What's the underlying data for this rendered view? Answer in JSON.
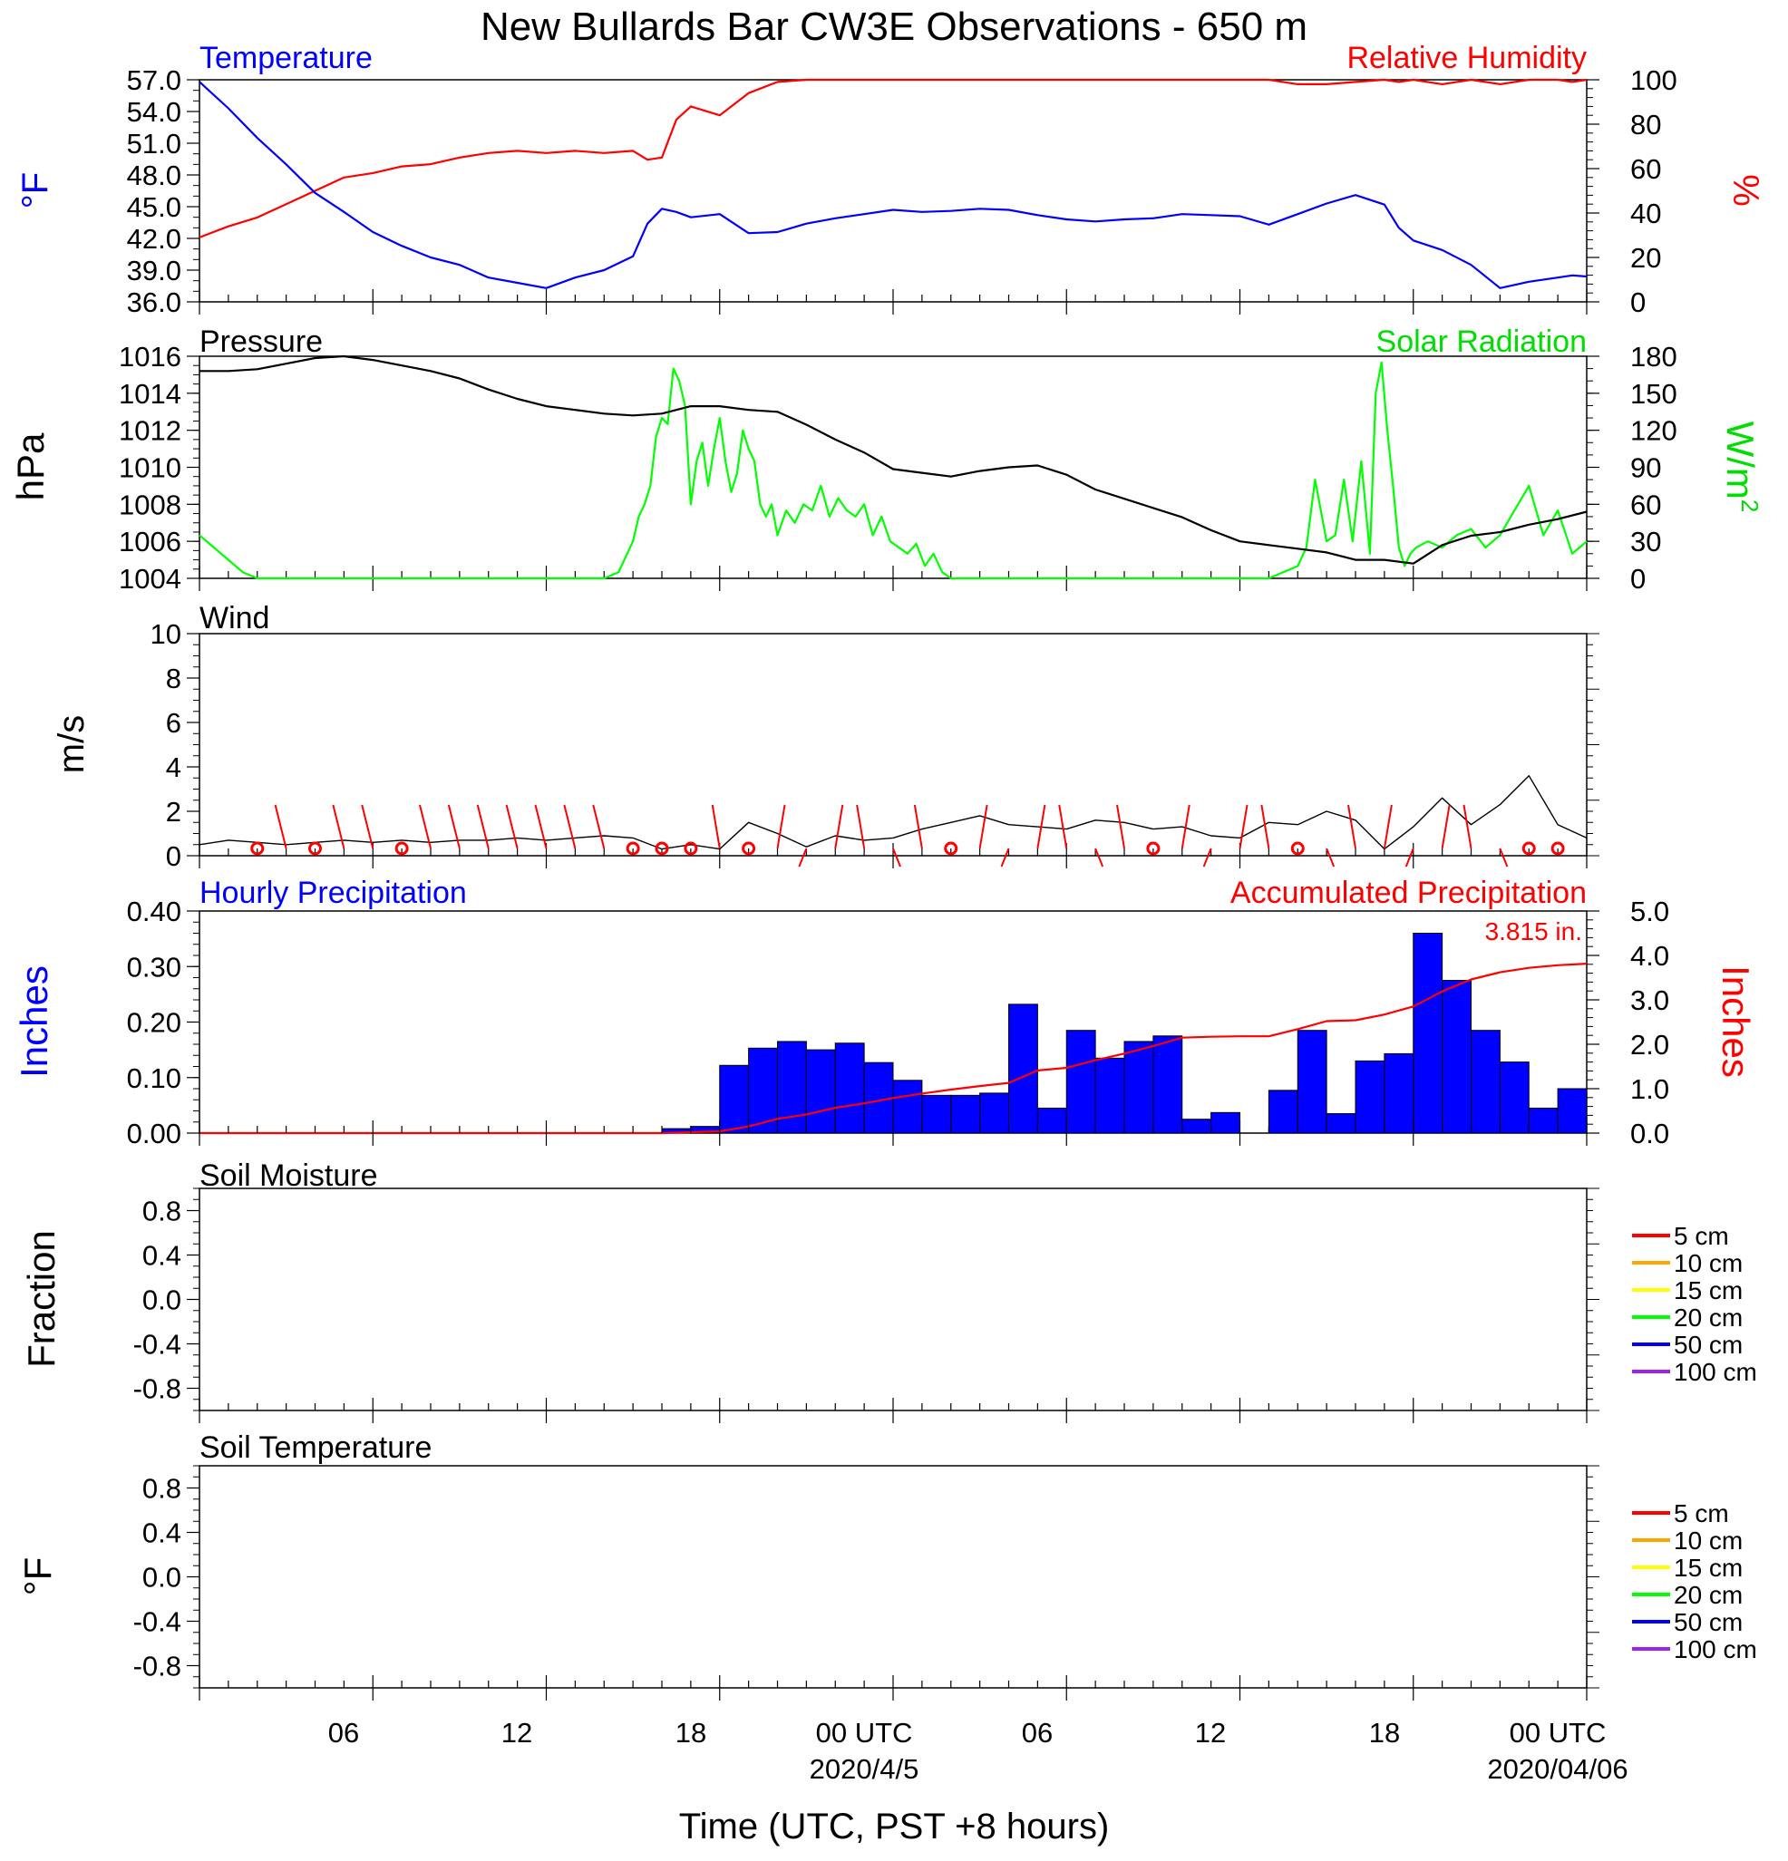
{
  "title": "New Bullards Bar CW3E Observations - 650 m",
  "x_axis": {
    "tick_labels": [
      "06",
      "12",
      "18",
      "00 UTC",
      "06",
      "12",
      "18",
      "00 UTC"
    ],
    "date_labels": [
      "2020/4/5",
      "2020/04/06"
    ],
    "xlabel": "Time (UTC, PST +8 hours)"
  },
  "colors": {
    "blue": "#0000ff",
    "red": "#ff0000",
    "green": "#00ff00",
    "black": "#000000"
  },
  "chart_data": [
    {
      "type": "line",
      "panel": "temperature_humidity",
      "left_title": "Temperature",
      "right_title": "Relative Humidity",
      "ylabel_left": "°F",
      "ylabel_right": "%",
      "ylim_left": [
        36,
        57
      ],
      "ylim_right": [
        0,
        100
      ],
      "left_ticks": [
        "57.0",
        "54.0",
        "51.0",
        "48.0",
        "45.0",
        "42.0",
        "39.0",
        "36.0"
      ],
      "right_ticks": [
        "100",
        "80",
        "60",
        "40",
        "20",
        "0"
      ],
      "x_hours": [
        0,
        1,
        2,
        3,
        4,
        5,
        6,
        7,
        8,
        9,
        10,
        11,
        12,
        13,
        14,
        15,
        15.5,
        16,
        16.5,
        17,
        18,
        19,
        20,
        21,
        22,
        23,
        24,
        25,
        26,
        27,
        28,
        29,
        30,
        31,
        32,
        33,
        34,
        35,
        36,
        37,
        38,
        39,
        40,
        41,
        41.5,
        42,
        43,
        44,
        45,
        46,
        47,
        47.5,
        48
      ],
      "series": [
        {
          "name": "Temperature",
          "axis": "left",
          "values": [
            56.8,
            54.3,
            51.5,
            49.0,
            46.3,
            44.5,
            42.6,
            41.3,
            40.2,
            39.5,
            38.3,
            37.8,
            37.3,
            38.3,
            39.0,
            40.3,
            43.4,
            44.8,
            44.5,
            44.0,
            44.3,
            42.5,
            42.6,
            43.4,
            43.9,
            44.3,
            44.7,
            44.5,
            44.6,
            44.8,
            44.7,
            44.2,
            43.8,
            43.6,
            43.8,
            43.9,
            44.3,
            44.2,
            44.1,
            43.3,
            44.3,
            45.3,
            46.1,
            45.2,
            43.0,
            41.8,
            40.9,
            39.5,
            37.3,
            37.9,
            38.3,
            38.5,
            38.4
          ]
        },
        {
          "name": "Relative Humidity",
          "axis": "right",
          "values": [
            29,
            34,
            38,
            44,
            50,
            56,
            58,
            61,
            62,
            65,
            67,
            68,
            67,
            68,
            67,
            68,
            64,
            65,
            82,
            88,
            84,
            94,
            99,
            100,
            100,
            100,
            100,
            100,
            100,
            100,
            100,
            100,
            100,
            100,
            100,
            100,
            100,
            100,
            100,
            100,
            98,
            98,
            99,
            100,
            99,
            100,
            98,
            100,
            98,
            100,
            100,
            99,
            100
          ]
        }
      ]
    },
    {
      "type": "line",
      "panel": "pressure_solar",
      "left_title": "Pressure",
      "right_title": "Solar Radiation",
      "ylabel_left": "hPa",
      "ylabel_right": "W/m",
      "ylabel_right_sup": "2",
      "ylim_left": [
        1004,
        1016
      ],
      "ylim_right": [
        0,
        180
      ],
      "left_ticks": [
        "1016",
        "1014",
        "1012",
        "1010",
        "1008",
        "1006",
        "1004"
      ],
      "right_ticks": [
        "180",
        "150",
        "120",
        "90",
        "60",
        "30",
        "0"
      ],
      "series": [
        {
          "name": "Pressure",
          "axis": "left",
          "x_hours": [
            0,
            1,
            2,
            3,
            4,
            5,
            6,
            7,
            8,
            9,
            10,
            11,
            12,
            13,
            14,
            15,
            16,
            17,
            18,
            19,
            20,
            21,
            22,
            23,
            24,
            25,
            26,
            27,
            28,
            29,
            30,
            31,
            32,
            33,
            34,
            35,
            36,
            37,
            38,
            39,
            40,
            41,
            42,
            43,
            44,
            45,
            46,
            47,
            48
          ],
          "values": [
            1015.2,
            1015.2,
            1015.3,
            1015.6,
            1015.9,
            1016.0,
            1015.8,
            1015.5,
            1015.2,
            1014.8,
            1014.2,
            1013.7,
            1013.3,
            1013.1,
            1012.9,
            1012.8,
            1012.9,
            1013.3,
            1013.3,
            1013.1,
            1013.0,
            1012.3,
            1011.5,
            1010.8,
            1009.9,
            1009.7,
            1009.5,
            1009.8,
            1010.0,
            1010.1,
            1009.6,
            1008.8,
            1008.3,
            1007.8,
            1007.3,
            1006.6,
            1006.0,
            1005.8,
            1005.6,
            1005.4,
            1005.0,
            1005.0,
            1004.8,
            1005.8,
            1006.3,
            1006.5,
            1006.9,
            1007.2,
            1007.6
          ]
        },
        {
          "name": "Solar Radiation",
          "axis": "right",
          "x_hours": [
            0,
            0.5,
            1,
            1.5,
            2,
            14,
            14.5,
            15,
            15.2,
            15.4,
            15.6,
            15.8,
            16,
            16.2,
            16.4,
            16.6,
            16.8,
            17,
            17.2,
            17.4,
            17.6,
            17.8,
            18,
            18.2,
            18.4,
            18.6,
            18.8,
            19,
            19.2,
            19.4,
            19.6,
            19.8,
            20,
            20.3,
            20.6,
            20.9,
            21.2,
            21.5,
            21.8,
            22.1,
            22.4,
            22.7,
            23,
            23.3,
            23.6,
            23.9,
            24.2,
            24.5,
            24.8,
            25.1,
            25.4,
            25.7,
            26,
            37,
            37.5,
            38,
            38.3,
            38.6,
            39,
            39.3,
            39.6,
            39.9,
            40.2,
            40.5,
            40.7,
            40.9,
            41.1,
            41.3,
            41.5,
            41.7,
            41.9,
            42.1,
            42.5,
            43,
            43.5,
            44,
            44.5,
            45,
            45.5,
            46,
            46.5,
            47,
            47.5,
            48
          ],
          "values": [
            35,
            25,
            15,
            5,
            0,
            0,
            5,
            30,
            50,
            60,
            75,
            115,
            130,
            125,
            170,
            160,
            140,
            60,
            95,
            110,
            75,
            105,
            130,
            95,
            70,
            85,
            120,
            105,
            95,
            60,
            50,
            60,
            35,
            55,
            45,
            60,
            55,
            75,
            50,
            65,
            55,
            50,
            60,
            35,
            50,
            30,
            25,
            20,
            28,
            10,
            20,
            5,
            0,
            0,
            5,
            10,
            25,
            80,
            30,
            35,
            80,
            30,
            95,
            20,
            150,
            175,
            120,
            75,
            25,
            10,
            20,
            25,
            30,
            25,
            35,
            40,
            25,
            35,
            55,
            75,
            35,
            55,
            20,
            30
          ]
        }
      ]
    },
    {
      "type": "line",
      "panel": "wind",
      "left_title": "Wind",
      "ylabel_left": "m/s",
      "ylim_left": [
        0,
        10
      ],
      "left_ticks": [
        "10",
        "8",
        "6",
        "4",
        "2",
        "0"
      ],
      "x_hours": [
        0,
        1,
        2,
        3,
        4,
        5,
        6,
        7,
        8,
        9,
        10,
        11,
        12,
        13,
        14,
        15,
        16,
        17,
        18,
        19,
        20,
        21,
        22,
        23,
        24,
        25,
        26,
        27,
        28,
        29,
        30,
        31,
        32,
        33,
        34,
        35,
        36,
        37,
        38,
        39,
        40,
        41,
        42,
        43,
        44,
        45,
        46,
        47,
        48
      ],
      "series": [
        {
          "name": "Wind speed",
          "values": [
            0.5,
            0.7,
            0.6,
            0.5,
            0.6,
            0.7,
            0.6,
            0.7,
            0.6,
            0.7,
            0.7,
            0.8,
            0.7,
            0.8,
            0.9,
            0.8,
            0.3,
            0.5,
            0.3,
            1.5,
            1.0,
            0.4,
            0.9,
            0.7,
            0.8,
            1.2,
            1.5,
            1.8,
            1.4,
            1.3,
            1.2,
            1.6,
            1.5,
            1.2,
            1.3,
            0.9,
            0.8,
            1.5,
            1.4,
            2.0,
            1.6,
            0.3,
            1.3,
            2.6,
            1.4,
            2.3,
            3.6,
            1.4,
            0.8
          ]
        }
      ],
      "barbs": {
        "calm_hours": [
          2,
          4,
          7,
          15,
          16,
          17,
          19,
          26,
          33,
          38,
          46,
          47
        ],
        "barb_hours": [
          3,
          5,
          6,
          8,
          9,
          10,
          11,
          12,
          13,
          14,
          18,
          20,
          21,
          22,
          23,
          24,
          25,
          27,
          28,
          29,
          30,
          31,
          32,
          34,
          35,
          36,
          37,
          39,
          40,
          41,
          42,
          43,
          44,
          45
        ]
      }
    },
    {
      "type": "bar",
      "panel": "precipitation",
      "left_title": "Hourly Precipitation",
      "right_title": "Accumulated Precipitation",
      "annotation": "3.815 in.",
      "ylabel_left": "Inches",
      "ylabel_right": "Inches",
      "ylim_left": [
        0,
        0.4
      ],
      "ylim_right": [
        0,
        5
      ],
      "left_ticks": [
        "0.40",
        "0.30",
        "0.20",
        "0.10",
        "0.00"
      ],
      "right_ticks": [
        "5.0",
        "4.0",
        "3.0",
        "2.0",
        "1.0",
        "0.0"
      ],
      "categories_hour_start": [
        16,
        17,
        18,
        19,
        20,
        21,
        22,
        23,
        24,
        25,
        26,
        27,
        28,
        29,
        30,
        31,
        32,
        33,
        34,
        35,
        36,
        37,
        38,
        39,
        40,
        41,
        42,
        43,
        44,
        45,
        46,
        47
      ],
      "values": [
        0.008,
        0.012,
        0.122,
        0.153,
        0.165,
        0.15,
        0.162,
        0.127,
        0.095,
        0.068,
        0.068,
        0.072,
        0.232,
        0.045,
        0.185,
        0.135,
        0.165,
        0.175,
        0.025,
        0.037,
        0.0,
        0.077,
        0.185,
        0.035,
        0.13,
        0.143,
        0.36,
        0.275,
        0.185,
        0.128,
        0.045,
        0.08
      ],
      "accumulated": {
        "x_hours": [
          0,
          16,
          18,
          19,
          20,
          21,
          22,
          23,
          24,
          25,
          26,
          27,
          28,
          29,
          30,
          31,
          32,
          33,
          34,
          35,
          36,
          37,
          38,
          39,
          40,
          41,
          42,
          43,
          44,
          45,
          46,
          47,
          48
        ],
        "values": [
          0,
          0,
          0.04,
          0.15,
          0.32,
          0.42,
          0.57,
          0.67,
          0.79,
          0.89,
          0.98,
          1.06,
          1.13,
          1.41,
          1.47,
          1.64,
          1.79,
          1.96,
          2.15,
          2.17,
          2.18,
          2.18,
          2.34,
          2.52,
          2.54,
          2.67,
          2.85,
          3.19,
          3.46,
          3.62,
          3.72,
          3.78,
          3.815
        ]
      }
    },
    {
      "type": "line",
      "panel": "soil_moisture",
      "left_title": "Soil Moisture",
      "ylabel_left": "Fraction",
      "ylim_left": [
        -1,
        1
      ],
      "left_ticks": [
        "0.8",
        "0.4",
        "0.0",
        "-0.4",
        "-0.8"
      ],
      "legend": [
        {
          "label": "5 cm",
          "color": "#ff0000"
        },
        {
          "label": "10 cm",
          "color": "#ffa500"
        },
        {
          "label": "15 cm",
          "color": "#ffff00"
        },
        {
          "label": "20 cm",
          "color": "#00ff00"
        },
        {
          "label": "50 cm",
          "color": "#0000ff"
        },
        {
          "label": "100 cm",
          "color": "#a020f0"
        }
      ]
    },
    {
      "type": "line",
      "panel": "soil_temperature",
      "left_title": "Soil Temperature",
      "ylabel_left": "°F",
      "ylim_left": [
        -1,
        1
      ],
      "left_ticks": [
        "0.8",
        "0.4",
        "0.0",
        "-0.4",
        "-0.8"
      ],
      "legend": [
        {
          "label": "5 cm",
          "color": "#ff0000"
        },
        {
          "label": "10 cm",
          "color": "#ffa500"
        },
        {
          "label": "15 cm",
          "color": "#ffff00"
        },
        {
          "label": "20 cm",
          "color": "#00ff00"
        },
        {
          "label": "50 cm",
          "color": "#0000ff"
        },
        {
          "label": "100 cm",
          "color": "#a020f0"
        }
      ]
    }
  ]
}
